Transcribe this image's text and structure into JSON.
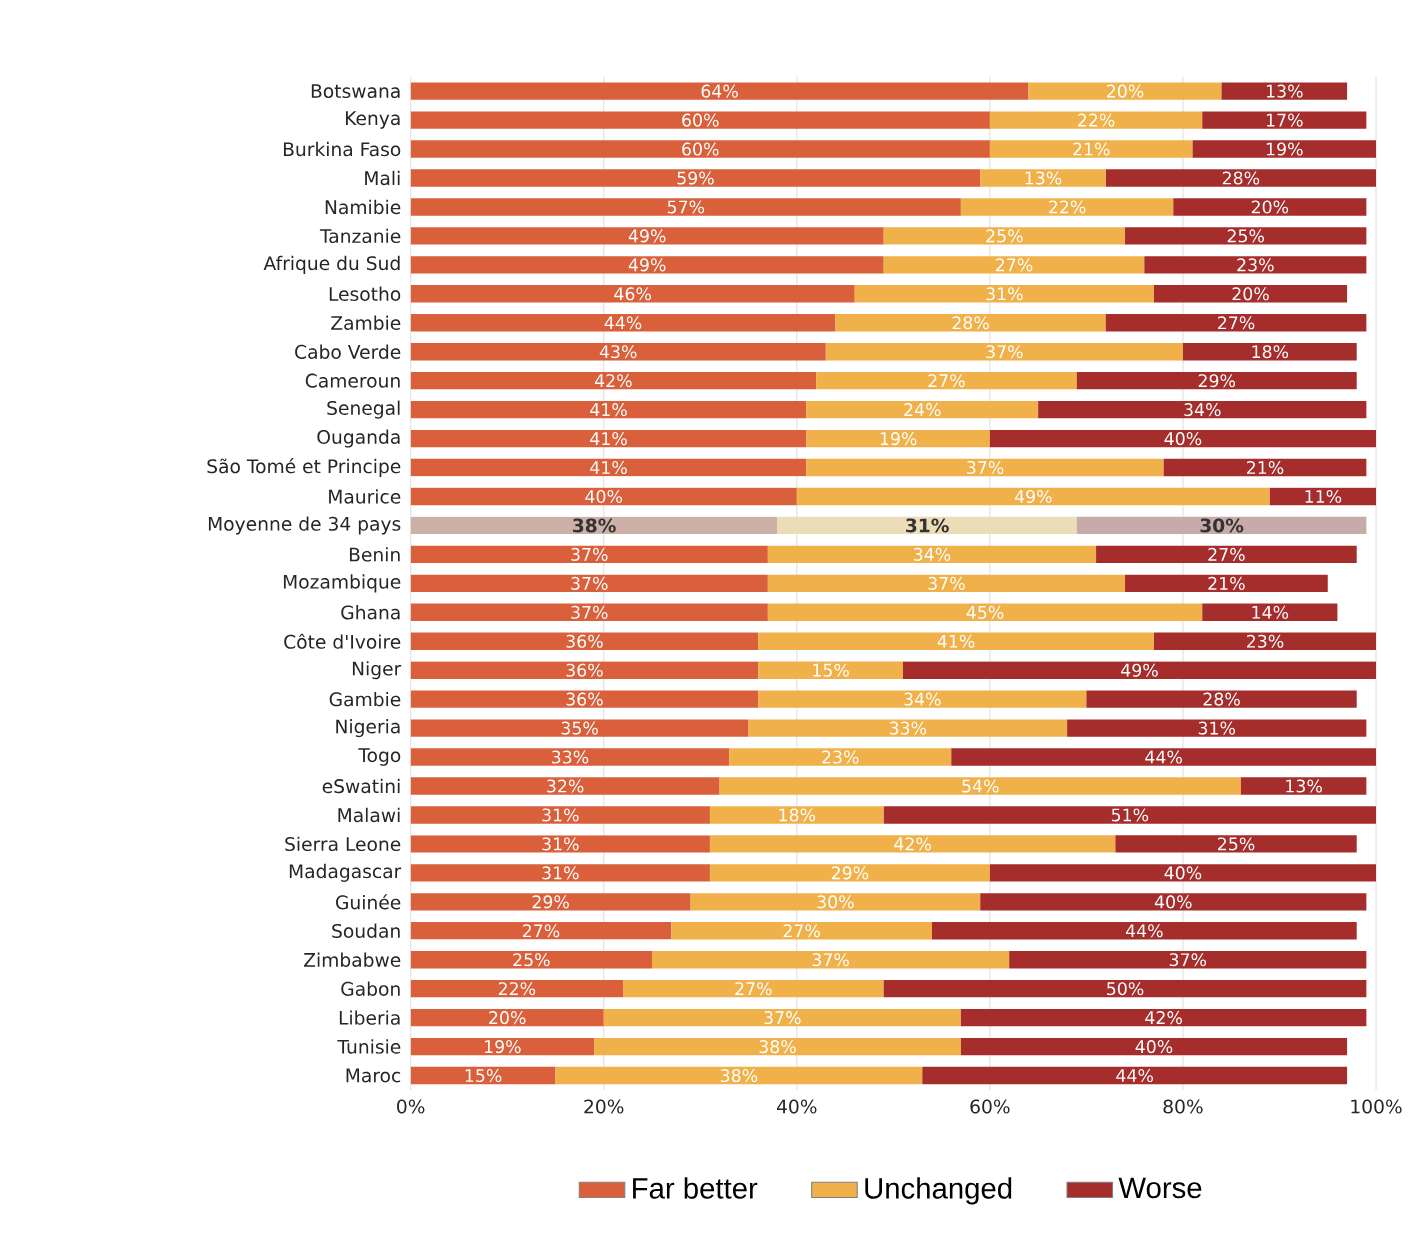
{
  "chart_data": {
    "type": "bar",
    "orientation": "horizontal",
    "stacked": true,
    "legend": "bottom",
    "grid": "x",
    "categories": [
      "Botswana",
      "Kenya",
      "Burkina Faso",
      "Mali",
      "Namibie",
      "Tanzanie",
      "Afrique du Sud",
      "Lesotho",
      "Zambie",
      "Cabo Verde",
      "Cameroun",
      "Senegal",
      "Ouganda",
      "São Tomé et Principe",
      "Maurice",
      "Moyenne de 34 pays",
      "Benin",
      "Mozambique",
      "Ghana",
      "Côte d'Ivoire",
      "Niger",
      "Gambie",
      "Nigeria",
      "Togo",
      "eSwatini",
      "Malawi",
      "Sierra Leone",
      "Madagascar",
      "Guinée",
      "Soudan",
      "Zimbabwe",
      "Gabon",
      "Liberia",
      "Tunisie",
      "Maroc"
    ],
    "xlim": [
      0,
      100
    ],
    "xticks": [
      {
        "value": 0,
        "label": "0%"
      },
      {
        "value": 20,
        "label": "20%"
      },
      {
        "value": 40,
        "label": "40%"
      },
      {
        "value": 60,
        "label": "60%"
      },
      {
        "value": 80,
        "label": "80%"
      },
      {
        "value": 100,
        "label": "100%"
      }
    ],
    "series": [
      {
        "name": "Far better",
        "color": "#d9603b",
        "values": [
          64,
          60,
          60,
          59,
          57,
          49,
          49,
          46,
          44,
          43,
          42,
          41,
          41,
          41,
          40,
          38,
          37,
          37,
          37,
          36,
          36,
          36,
          35,
          33,
          32,
          31,
          31,
          31,
          29,
          27,
          25,
          22,
          20,
          19,
          15
        ],
        "value_labels": [
          "64%",
          "60%",
          "60%",
          "59%",
          "57%",
          "49%",
          "49%",
          "46%",
          "44%",
          "43%",
          "42%",
          "41%",
          "41%",
          "41%",
          "40%",
          "38%",
          "37%",
          "37%",
          "37%",
          "36%",
          "36%",
          "36%",
          "35%",
          "33%",
          "32%",
          "31%",
          "31%",
          "31%",
          "29%",
          "27%",
          "25%",
          "22%",
          "20%",
          "19%",
          "15%"
        ],
        "colors": [
          "#d9603b",
          "#d9603b",
          "#d9603b",
          "#d9603b",
          "#d9603b",
          "#d9603b",
          "#d9603b",
          "#d9603b",
          "#d9603b",
          "#d9603b",
          "#d9603b",
          "#d9603b",
          "#d9603b",
          "#d9603b",
          "#d9603b",
          "#cdb1a8",
          "#d9603b",
          "#d9603b",
          "#d9603b",
          "#d9603b",
          "#d9603b",
          "#d9603b",
          "#d9603b",
          "#d9603b",
          "#d9603b",
          "#d9603b",
          "#d9603b",
          "#d9603b",
          "#d9603b",
          "#d9603b",
          "#d9603b",
          "#d9603b",
          "#d9603b",
          "#d9603b",
          "#d9603b"
        ]
      },
      {
        "name": "Unchanged",
        "color": "#f0b04a",
        "values": [
          20,
          22,
          21,
          13,
          22,
          25,
          27,
          31,
          28,
          37,
          27,
          24,
          19,
          37,
          49,
          31,
          34,
          37,
          45,
          41,
          15,
          34,
          33,
          23,
          54,
          18,
          42,
          29,
          30,
          27,
          37,
          27,
          37,
          38,
          38
        ],
        "value_labels": [
          "20%",
          "22%",
          "21%",
          "13%",
          "22%",
          "25%",
          "27%",
          "31%",
          "28%",
          "37%",
          "27%",
          "24%",
          "19%",
          "37%",
          "49%",
          "31%",
          "34%",
          "37%",
          "45%",
          "41%",
          "15%",
          "34%",
          "33%",
          "23%",
          "54%",
          "18%",
          "42%",
          "29%",
          "30%",
          "27%",
          "37%",
          "27%",
          "37%",
          "38%",
          "38%"
        ],
        "colors": [
          "#f0b04a",
          "#f0b04a",
          "#f0b04a",
          "#f0b04a",
          "#f0b04a",
          "#f0b04a",
          "#f0b04a",
          "#f0b04a",
          "#f0b04a",
          "#f0b04a",
          "#f0b04a",
          "#f0b04a",
          "#f0b04a",
          "#f0b04a",
          "#f0b04a",
          "#ecdcb8",
          "#f0b04a",
          "#f0b04a",
          "#f0b04a",
          "#f0b04a",
          "#f0b04a",
          "#f0b04a",
          "#f0b04a",
          "#f0b04a",
          "#f0b04a",
          "#f0b04a",
          "#f0b04a",
          "#f0b04a",
          "#f0b04a",
          "#f0b04a",
          "#f0b04a",
          "#f0b04a",
          "#f0b04a",
          "#f0b04a",
          "#f0b04a"
        ]
      },
      {
        "name": "Worse",
        "color": "#a52e2c",
        "values": [
          13,
          17,
          19,
          28,
          20,
          25,
          23,
          20,
          27,
          18,
          29,
          34,
          40,
          21,
          11,
          30,
          27,
          21,
          14,
          23,
          49,
          28,
          31,
          44,
          13,
          51,
          25,
          40,
          40,
          44,
          37,
          50,
          42,
          40,
          44
        ],
        "value_labels": [
          "13%",
          "17%",
          "19%",
          "28%",
          "20%",
          "25%",
          "23%",
          "20%",
          "27%",
          "18%",
          "29%",
          "34%",
          "40%",
          "21%",
          "11%",
          "30%",
          "27%",
          "21%",
          "14%",
          "23%",
          "49%",
          "28%",
          "31%",
          "44%",
          "13%",
          "51%",
          "25%",
          "40%",
          "40%",
          "44%",
          "37%",
          "50%",
          "42%",
          "40%",
          "44%"
        ],
        "colors": [
          "#a52e2c",
          "#a52e2c",
          "#a52e2c",
          "#a52e2c",
          "#a52e2c",
          "#a52e2c",
          "#a52e2c",
          "#a52e2c",
          "#a52e2c",
          "#a52e2c",
          "#a52e2c",
          "#a52e2c",
          "#a52e2c",
          "#a52e2c",
          "#a52e2c",
          "#c8aaa8",
          "#a52e2c",
          "#a52e2c",
          "#a52e2c",
          "#a52e2c",
          "#a52e2c",
          "#a52e2c",
          "#a52e2c",
          "#a52e2c",
          "#a52e2c",
          "#a52e2c",
          "#a52e2c",
          "#a52e2c",
          "#a52e2c",
          "#a52e2c",
          "#a52e2c",
          "#a52e2c",
          "#a52e2c",
          "#a52e2c",
          "#a52e2c"
        ]
      }
    ]
  }
}
